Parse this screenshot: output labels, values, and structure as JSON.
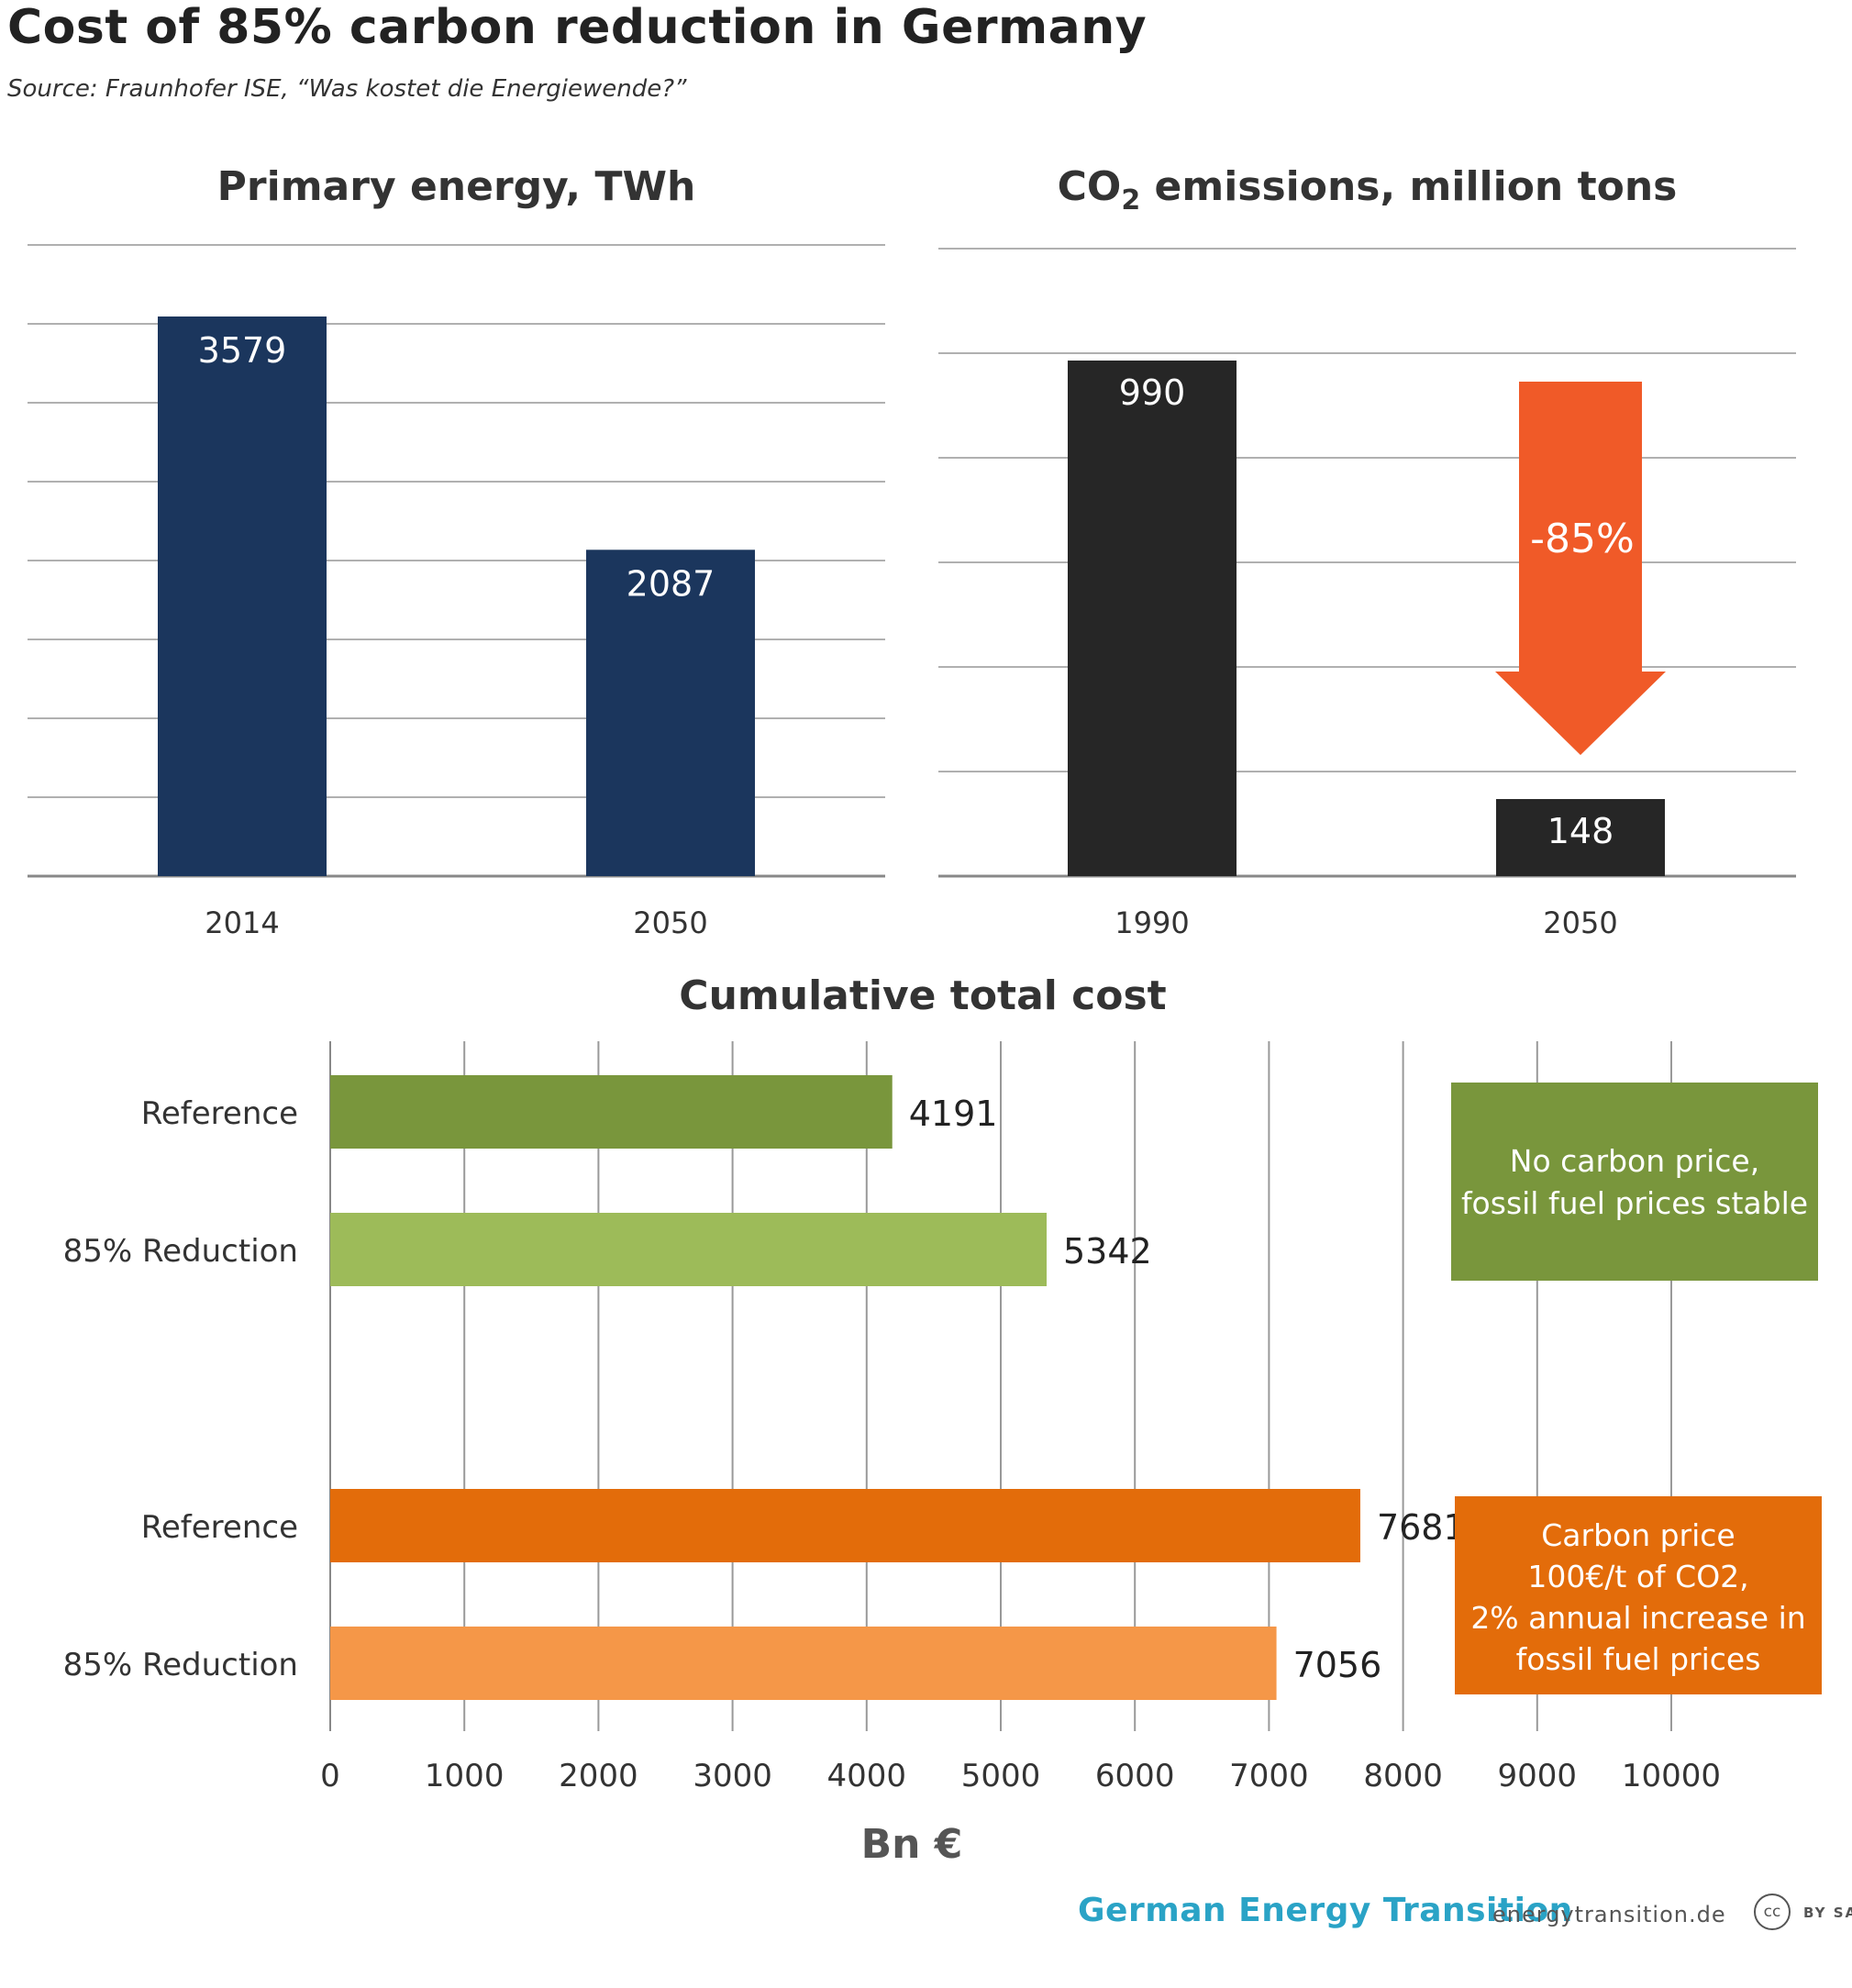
{
  "title": "Cost of 85% carbon reduction in Germany",
  "source": "Source:  Fraunhofer ISE, “Was kostet die Energiewende?”",
  "footer": {
    "brand": "German Energy Transition",
    "site": "energytransition.de",
    "cc": "cc",
    "license": "BY SA"
  },
  "colors": {
    "navy": "#1b365d",
    "dark": "#262626",
    "arrow": "#f05a28",
    "olive": "#79963c",
    "lightgreen": "#9dbb59",
    "orange": "#e36c0a",
    "lightorange": "#f59748",
    "grid": "#b0b0b0"
  },
  "chart_data": [
    {
      "type": "bar",
      "title": "Primary energy, TWh",
      "categories": [
        "2014",
        "2050"
      ],
      "values": [
        3579,
        2087
      ],
      "data_labels": [
        "3579",
        "2087"
      ],
      "grid": true
    },
    {
      "type": "bar",
      "title_parts": {
        "pre": "CO",
        "sub": "2",
        "post": " emissions, million tons"
      },
      "categories": [
        "1990",
        "2050"
      ],
      "values": [
        990,
        148
      ],
      "data_labels": [
        "990",
        "148"
      ],
      "grid": true,
      "annotation": "-85%"
    },
    {
      "type": "bar",
      "orientation": "horizontal",
      "title": "Cumulative total cost",
      "xlabel": "Bn €",
      "xlim": [
        0,
        10000
      ],
      "xticks": [
        "0",
        "1000",
        "2000",
        "3000",
        "4000",
        "5000",
        "6000",
        "7000",
        "8000",
        "9000",
        "10000"
      ],
      "categories": [
        "Reference",
        "85% Reduction",
        "Reference",
        "85% Reduction"
      ],
      "values": [
        4191,
        5342,
        7681,
        7056
      ],
      "data_labels": [
        "4191",
        "5342",
        "7681",
        "7056"
      ],
      "groups": [
        {
          "scenario": "No carbon price,\nfossil fuel prices stable",
          "bars": [
            0,
            1
          ]
        },
        {
          "scenario": "Carbon price\n100€/t of CO2,\n2% annual increase in\nfossil fuel prices",
          "bars": [
            2,
            3
          ]
        }
      ],
      "grid": true
    }
  ]
}
